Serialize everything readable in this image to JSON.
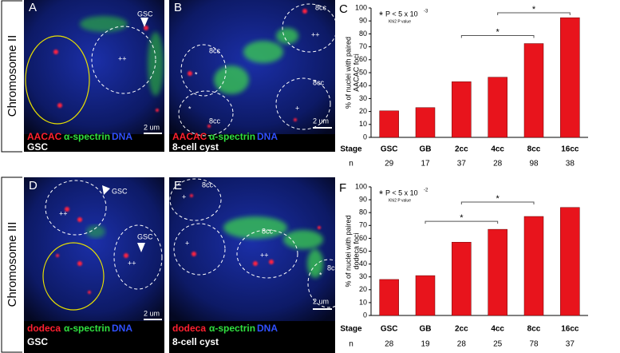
{
  "row_labels": [
    "Chromosome II",
    "Chromosome III"
  ],
  "panels": [
    {
      "letter": "A",
      "probe": "AACAC",
      "marker": "α-spectrin",
      "dna": "DNA",
      "caption": "GSC",
      "scale": "2 um",
      "labels": [
        "GSC",
        "++"
      ]
    },
    {
      "letter": "B",
      "probe": "AACAC",
      "marker": "α-spectrin",
      "dna": "DNA",
      "caption": "8-cell cyst",
      "scale": "2 um",
      "labels": [
        "8cc",
        "++",
        "8cc",
        "*",
        "*",
        "8cc",
        "8cc",
        "+"
      ]
    },
    {
      "letter": "D",
      "probe": "dodeca",
      "marker": "α-spectrin",
      "dna": "DNA",
      "caption": "GSC",
      "scale": "2 um",
      "labels": [
        "GSC",
        "++",
        "GSC",
        "++"
      ]
    },
    {
      "letter": "E",
      "probe": "dodeca",
      "marker": "α-spectrin",
      "dna": "DNA",
      "caption": "8-cell cyst",
      "scale": "2 um",
      "labels": [
        "8cc",
        "+",
        "+",
        "8cc",
        "++",
        "8cc",
        "*"
      ]
    }
  ],
  "chart_data": [
    {
      "type": "bar",
      "letter": "C",
      "ylabel": [
        "% of nuclei with paired",
        "AACAC foci"
      ],
      "categories": [
        "GSC",
        "GB",
        "2cc",
        "4cc",
        "8cc",
        "16cc"
      ],
      "values": [
        20.5,
        23,
        43,
        46.5,
        72.5,
        92.5
      ],
      "color": "#e8141c",
      "ylim": [
        0,
        100
      ],
      "yticks": [
        0,
        10,
        20,
        30,
        40,
        50,
        60,
        70,
        80,
        90,
        100
      ],
      "stage_label": "Stage",
      "n_label": "n",
      "n": [
        29,
        17,
        37,
        28,
        98,
        38
      ],
      "significance": {
        "symbol": "*",
        "text": "P < 5 x 10",
        "exponent": "-3",
        "note": "Khi2 P value"
      },
      "brackets": [
        {
          "from": "2cc",
          "to": "8cc",
          "label": "*"
        },
        {
          "from": "4cc",
          "to": "16cc",
          "label": "*"
        }
      ]
    },
    {
      "type": "bar",
      "letter": "F",
      "ylabel": [
        "% of nuclei with paired",
        "dodeca foci"
      ],
      "categories": [
        "GSC",
        "GB",
        "2cc",
        "4cc",
        "8cc",
        "16cc"
      ],
      "values": [
        28,
        31,
        57,
        67,
        77,
        84
      ],
      "color": "#e8141c",
      "ylim": [
        0,
        100
      ],
      "yticks": [
        0,
        10,
        20,
        30,
        40,
        50,
        60,
        70,
        80,
        90,
        100
      ],
      "stage_label": "Stage",
      "n_label": "n",
      "n": [
        28,
        19,
        28,
        25,
        78,
        37
      ],
      "significance": {
        "symbol": "*",
        "text": "P < 5 x 10",
        "exponent": "-2",
        "note": "Khi2 P value"
      },
      "brackets": [
        {
          "from": "GB",
          "to": "4cc",
          "label": "*"
        },
        {
          "from": "2cc",
          "to": "8cc",
          "label": "*"
        }
      ]
    }
  ]
}
